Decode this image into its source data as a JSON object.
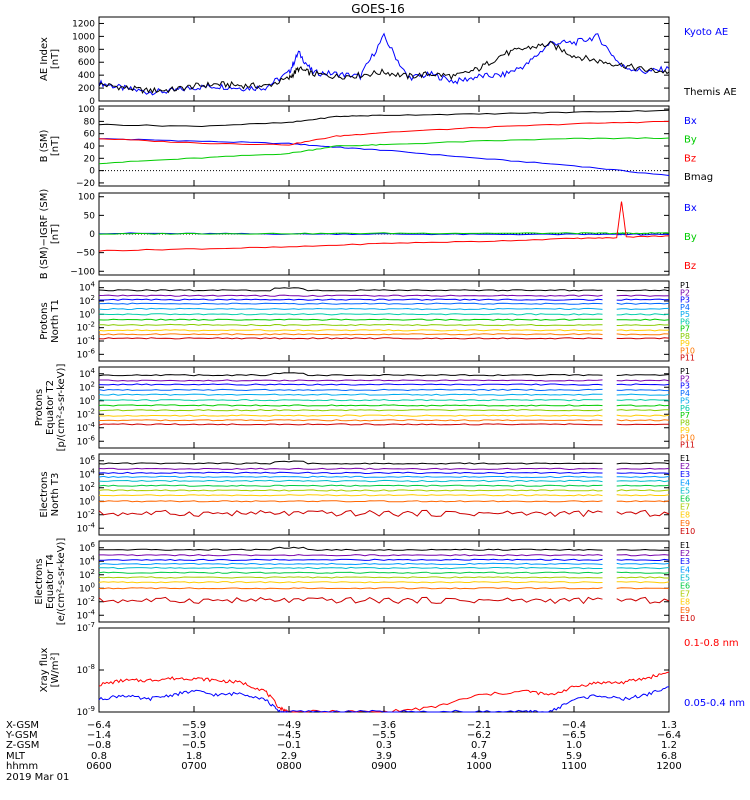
{
  "title": "GOES-16",
  "chart_data": [
    {
      "type": "line",
      "ylabel": [
        "AE Index",
        "[nT]"
      ],
      "yticks": [
        "0",
        "200",
        "400",
        "600",
        "800",
        "1000",
        "1200"
      ],
      "ylim": [
        0,
        1300
      ],
      "x": [
        6.0,
        6.25,
        6.5,
        6.75,
        7.0,
        7.25,
        7.5,
        7.75,
        8.0,
        8.1,
        8.25,
        8.5,
        8.75,
        9.0,
        9.25,
        9.5,
        9.75,
        10.0,
        10.25,
        10.5,
        10.75,
        11.0,
        11.25,
        11.5,
        11.75,
        12.0
      ],
      "series": [
        {
          "name": "Kyoto AE",
          "color": "#0000ff",
          "values": [
            280,
            200,
            140,
            150,
            210,
            230,
            200,
            210,
            440,
            750,
            440,
            420,
            380,
            1000,
            360,
            410,
            300,
            380,
            400,
            560,
            900,
            900,
            1000,
            540,
            450,
            500
          ]
        },
        {
          "name": "Themis AE",
          "color": "#000000",
          "values": [
            260,
            210,
            160,
            170,
            230,
            260,
            240,
            230,
            350,
            500,
            420,
            380,
            400,
            450,
            380,
            420,
            380,
            500,
            720,
            820,
            880,
            700,
            620,
            560,
            480,
            450
          ]
        }
      ]
    },
    {
      "type": "line",
      "ylabel": [
        "B (SM)",
        "[nT]"
      ],
      "yticks": [
        "-20",
        "0",
        "20",
        "40",
        "60",
        "80",
        "100"
      ],
      "ylim": [
        -25,
        105
      ],
      "x": [
        6.0,
        7.0,
        8.0,
        8.5,
        9.0,
        10.0,
        11.0,
        12.0
      ],
      "series": [
        {
          "name": "Bx",
          "color": "#0000ff",
          "values": [
            52,
            48,
            44,
            38,
            33,
            20,
            8,
            -8
          ]
        },
        {
          "name": "By",
          "color": "#00cc00",
          "values": [
            12,
            20,
            28,
            40,
            42,
            48,
            52,
            53
          ]
        },
        {
          "name": "Bz",
          "color": "#ff0000",
          "values": [
            52,
            45,
            42,
            56,
            62,
            70,
            76,
            80
          ]
        },
        {
          "name": "Bmag",
          "color": "#000000",
          "values": [
            75,
            72,
            78,
            88,
            90,
            92,
            95,
            98
          ]
        }
      ]
    },
    {
      "type": "line",
      "ylabel": [
        "B (SM)−IGRF (SM)",
        "[nT]"
      ],
      "yticks": [
        "-100",
        "-50",
        "0",
        "50",
        "100"
      ],
      "ylim": [
        -110,
        110
      ],
      "x": [
        6.0,
        7.0,
        8.0,
        9.0,
        10.0,
        11.0,
        11.45,
        11.5,
        11.55,
        12.0
      ],
      "series": [
        {
          "name": "Bx",
          "color": "#0000ff",
          "values": [
            2,
            1,
            0,
            0,
            -1,
            -1,
            -1,
            -1,
            -1,
            -2
          ]
        },
        {
          "name": "By",
          "color": "#00cc00",
          "values": [
            0,
            1,
            1,
            2,
            2,
            2,
            2,
            2,
            2,
            3
          ]
        },
        {
          "name": "Bz",
          "color": "#ff0000",
          "values": [
            -45,
            -40,
            -35,
            -25,
            -20,
            -12,
            -10,
            88,
            -8,
            -5
          ]
        }
      ]
    },
    {
      "type": "line",
      "ylabel": [
        "Protons",
        "North T1"
      ],
      "yticks": [
        "10^4",
        "10^2",
        "10^0",
        "10^-2",
        "10^-4",
        "10^-6"
      ],
      "ylog": true,
      "ylim_exp": [
        -7,
        5
      ],
      "legend": [
        "P1",
        "P2",
        "P3",
        "P4",
        "P5",
        "P6",
        "P7",
        "P8",
        "P9",
        "P10",
        "P11"
      ],
      "levels_log10": [
        3.6,
        2.8,
        2.2,
        1.6,
        0.8,
        0.0,
        -0.8,
        -1.6,
        -2.4,
        -3.0,
        -3.6
      ],
      "gap_hours": [
        11.3,
        11.45
      ]
    },
    {
      "type": "line",
      "ylabel": [
        "Protons",
        "Equator T2",
        "[p/(cm²-s-sr-keV)]"
      ],
      "yticks": [
        "10^4",
        "10^2",
        "10^0",
        "10^-2",
        "10^-4",
        "10^-6"
      ],
      "ylog": true,
      "ylim_exp": [
        -7,
        5
      ],
      "legend": [
        "P1",
        "P2",
        "P3",
        "P4",
        "P5",
        "P6",
        "P7",
        "P8",
        "P9",
        "P10",
        "P11"
      ],
      "levels_log10": [
        3.8,
        3.0,
        2.4,
        1.6,
        0.9,
        0.1,
        -0.7,
        -1.4,
        -2.2,
        -2.9,
        -3.5
      ],
      "gap_hours": [
        11.3,
        11.45
      ]
    },
    {
      "type": "line",
      "ylabel": [
        "Electrons",
        "North T3"
      ],
      "yticks": [
        "10^6",
        "10^4",
        "10^2",
        "10^0",
        "10^-2",
        "10^-4"
      ],
      "ylog": true,
      "ylim_exp": [
        -5,
        7
      ],
      "legend": [
        "E1",
        "E2",
        "E3",
        "E4",
        "E5",
        "E6",
        "E7",
        "E8",
        "E9",
        "E10"
      ],
      "levels_log10": [
        5.6,
        4.8,
        4.2,
        3.6,
        3.0,
        2.3,
        1.6,
        0.9,
        0.0,
        -1.8
      ],
      "gap_hours": [
        11.3,
        11.45
      ]
    },
    {
      "type": "line",
      "ylabel": [
        "Electrons",
        "Equator T4",
        "[e/(cm²-s-sr-keV)]"
      ],
      "yticks": [
        "10^6",
        "10^4",
        "10^2",
        "10^0",
        "10^-2",
        "10^-4"
      ],
      "ylog": true,
      "ylim_exp": [
        -5,
        7
      ],
      "legend": [
        "E1",
        "E2",
        "E3",
        "E4",
        "E5",
        "E6",
        "E7",
        "E8",
        "E9",
        "E10"
      ],
      "levels_log10": [
        5.7,
        4.9,
        4.2,
        3.6,
        3.0,
        2.3,
        1.6,
        0.9,
        0.0,
        -1.8
      ],
      "gap_hours": [
        11.3,
        11.45
      ]
    },
    {
      "type": "line",
      "ylabel": [
        "Xray flux",
        "[W/m²]"
      ],
      "yticks": [
        "10^-7",
        "10^-8",
        "10^-9"
      ],
      "ylog": true,
      "ylim_exp": [
        -9,
        -7
      ],
      "x": [
        6.0,
        6.25,
        6.5,
        6.75,
        7.0,
        7.25,
        7.5,
        7.75,
        7.9,
        8.0,
        8.5,
        9.0,
        9.5,
        10.0,
        10.5,
        10.75,
        11.0,
        11.25,
        11.5,
        11.75,
        12.0
      ],
      "series": [
        {
          "name": "0.1-0.8 nm",
          "color": "#ff0000",
          "values": [
            -8.35,
            -8.25,
            -8.25,
            -8.2,
            -8.2,
            -8.25,
            -8.3,
            -8.5,
            -8.9,
            -9.0,
            -9.0,
            -9.0,
            -8.9,
            -8.6,
            -8.5,
            -8.6,
            -8.4,
            -8.3,
            -8.3,
            -8.2,
            -8.05
          ]
        },
        {
          "name": "0.05-0.4 nm",
          "color": "#0000ff",
          "values": [
            -8.7,
            -8.6,
            -8.7,
            -8.6,
            -8.5,
            -8.6,
            -8.55,
            -8.7,
            -9.0,
            -9.0,
            -9.0,
            -9.0,
            -9.0,
            -9.0,
            -9.0,
            -9.0,
            -8.7,
            -8.6,
            -8.7,
            -8.6,
            -8.4
          ]
        }
      ]
    }
  ],
  "x_axis": {
    "row_labels": [
      "X-GSM",
      "Y-GSM",
      "Z-GSM",
      "MLT",
      "hhmm"
    ],
    "date": "2019 Mar 01",
    "ticks": [
      {
        "x": "-6.4",
        "y": "-1.4",
        "z": "-0.8",
        "mlt": "0.8",
        "hhmm": "0600"
      },
      {
        "x": "-5.9",
        "y": "-3.0",
        "z": "-0.5",
        "mlt": "1.8",
        "hhmm": "0700"
      },
      {
        "x": "-4.9",
        "y": "-4.5",
        "z": "-0.1",
        "mlt": "2.9",
        "hhmm": "0800"
      },
      {
        "x": "-3.6",
        "y": "-5.5",
        "z": "0.3",
        "mlt": "3.9",
        "hhmm": "0900"
      },
      {
        "x": "-2.1",
        "y": "-6.2",
        "z": "0.7",
        "mlt": "4.9",
        "hhmm": "1000"
      },
      {
        "x": "-0.4",
        "y": "-6.5",
        "z": "1.0",
        "mlt": "5.9",
        "hhmm": "1100"
      },
      {
        "x": "1.3",
        "y": "-6.4",
        "z": "1.2",
        "mlt": "6.8",
        "hhmm": "1200"
      }
    ]
  },
  "colors": {
    "channel11": [
      "#000000",
      "#7700aa",
      "#0000ff",
      "#0066ff",
      "#00aaee",
      "#00ccaa",
      "#00cc00",
      "#88cc00",
      "#ffcc00",
      "#ff7700",
      "#cc0000"
    ],
    "channel10": [
      "#000000",
      "#7700aa",
      "#0000ff",
      "#0099ff",
      "#00bbcc",
      "#00cc44",
      "#aacc00",
      "#ffcc00",
      "#ff6600",
      "#cc0000"
    ]
  }
}
